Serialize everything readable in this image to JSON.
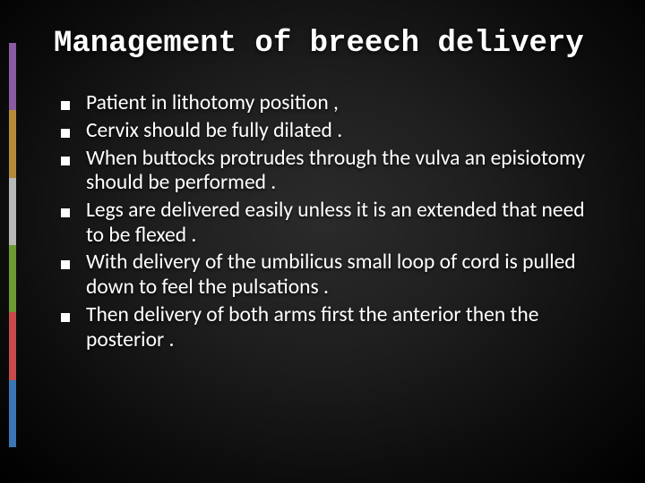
{
  "slide": {
    "title": "Management of breech delivery",
    "title_fontsize": 34,
    "body_fontsize": 23.5,
    "title_color": "#ffffff",
    "text_color": "#ffffff",
    "background_gradient": {
      "inner": "#2b2b2b",
      "mid": "#1f1f1f",
      "outer": "#000000"
    },
    "accent_colors": [
      "#8a5aa3",
      "#b58a3a",
      "#b9b9b9",
      "#6d9a33",
      "#c84a4a",
      "#3a76b5"
    ],
    "bullet_marker": "square",
    "bullet_color": "#ffffff",
    "bullets": [
      "Patient in lithotomy position ,",
      "Cervix should be fully dilated .",
      "When buttocks protrudes through the vulva an episiotomy  should be performed .",
      "Legs are delivered easily unless it is an extended that need to be flexed .",
      "With delivery of the umbilicus small loop of cord is pulled down to feel the pulsations .",
      "Then delivery of both arms first the anterior then the posterior ."
    ]
  }
}
